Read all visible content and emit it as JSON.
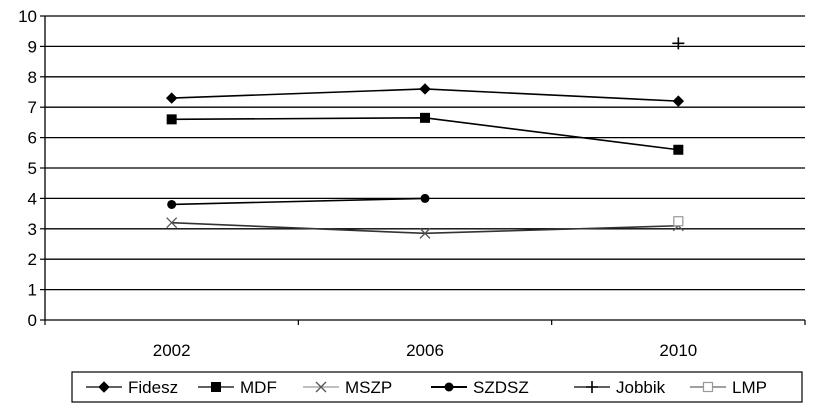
{
  "chart_data": {
    "type": "line",
    "title": "",
    "xlabel": "",
    "ylabel": "",
    "categories": [
      "2002",
      "2006",
      "2010"
    ],
    "ylim": [
      0,
      10
    ],
    "yticks": [
      "0",
      "1",
      "2",
      "3",
      "4",
      "5",
      "6",
      "7",
      "8",
      "9",
      "10"
    ],
    "grid": true,
    "legend_position": "bottom",
    "series": [
      {
        "name": "Fidesz",
        "marker": "diamond",
        "color": "#000000",
        "values": [
          7.3,
          7.6,
          7.2
        ]
      },
      {
        "name": "MDF",
        "marker": "square",
        "color": "#000000",
        "values": [
          6.6,
          6.65,
          5.6
        ]
      },
      {
        "name": "MSZP",
        "marker": "cross",
        "color": "#000000",
        "values": [
          3.2,
          2.85,
          3.1
        ]
      },
      {
        "name": "SZDSZ",
        "marker": "circle",
        "color": "#000000",
        "values": [
          3.8,
          4.0,
          null
        ]
      },
      {
        "name": "Jobbik",
        "marker": "plus",
        "color": "#000000",
        "values": [
          null,
          null,
          9.1
        ]
      },
      {
        "name": "LMP",
        "marker": "open-square",
        "color": "#000000",
        "values": [
          null,
          null,
          3.25
        ]
      }
    ]
  }
}
